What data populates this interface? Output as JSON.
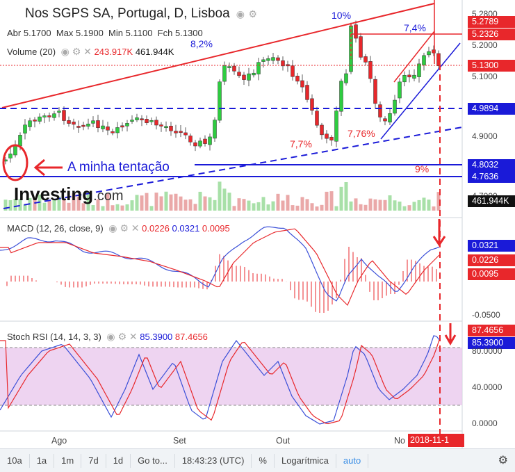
{
  "header": {
    "title": "Nos SGPS SA, Portugal, D, Lisboa",
    "ohlc": {
      "open_label": "Abr",
      "open": "5.1700",
      "high_label": "Max",
      "high": "5.1900",
      "low_label": "Min",
      "low": "5.1100",
      "close_label": "Fch",
      "close": "5.1300"
    },
    "volume_label": "Volume (20)",
    "volume_value": "243.917K",
    "volume_ma": "461.944K"
  },
  "annotations": {
    "pct_top": "10%",
    "pct_left": "8,2%",
    "pct_right_top": "7,4%",
    "pct_low_left": "7,7%",
    "pct_low_right": "7,76%",
    "pct_bottom": "9%",
    "temptation": "A minha tentação"
  },
  "price_axis": {
    "labels": [
      "5.2800",
      "5.2000",
      "5.1000",
      "4.9000",
      "4.7000"
    ],
    "pills": [
      {
        "text": "5.2789",
        "color": "#e8272b"
      },
      {
        "text": "5.2326",
        "color": "#e8272b"
      },
      {
        "text": "5.1300",
        "color": "#e8272b"
      },
      {
        "text": "4.9894",
        "color": "#1a1ad8"
      },
      {
        "text": "4.8032",
        "color": "#1a1ad8"
      },
      {
        "text": "4.7636",
        "color": "#1a1ad8"
      }
    ],
    "volume_pill": "461.944K"
  },
  "macd": {
    "label": "MACD (12, 26, close, 9)",
    "v1": "0.0226",
    "v2": "0.0321",
    "v3": "0.0095",
    "axis_labels": [
      "-0.0500"
    ],
    "pills": [
      {
        "text": "0.0321",
        "color": "#1a1ad8"
      },
      {
        "text": "0.0226",
        "color": "#e8272b"
      },
      {
        "text": "0.0095",
        "color": "#e8272b"
      }
    ]
  },
  "stoch": {
    "label": "Stoch RSI (14, 14, 3, 3)",
    "v1": "85.3900",
    "v2": "87.4656",
    "axis_labels": [
      "80.0000",
      "40.0000",
      "0.0000"
    ],
    "pills": [
      {
        "text": "87.4656",
        "color": "#e8272b"
      },
      {
        "text": "85.3900",
        "color": "#1a1ad8"
      }
    ]
  },
  "time_axis": {
    "labels": [
      "Ago",
      "Set",
      "Out",
      "No"
    ],
    "date_pill": "2018-11-1"
  },
  "bottom_bar": {
    "items": [
      "10a",
      "1a",
      "1m",
      "7d",
      "1d",
      "Go to...",
      "18:43:23 (UTC)",
      "%",
      "Logarítmica",
      "auto"
    ]
  },
  "brand": {
    "logo": "Investing.com"
  },
  "colors": {
    "up": "#2ecc40",
    "down": "#e8272b",
    "blue": "#1a1ad8",
    "stoch_band": "#e8c6ec"
  }
}
